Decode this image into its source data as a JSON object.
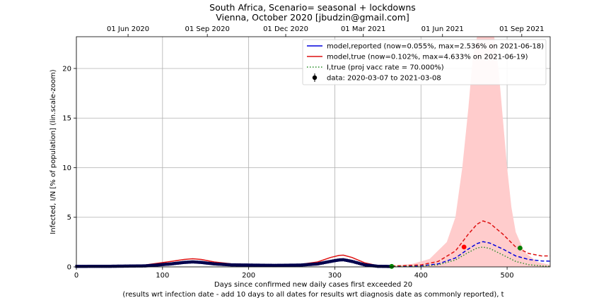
{
  "chart_data": {
    "type": "line",
    "title": "South Africa, Scenario= seasonal + lockdowns",
    "subtitle": "Vienna, October 2020 [jbudzin@gmail.com]",
    "xlabel": "Days since confirmed new daily cases first exceeded 20",
    "xlabel_note": "(results wrt infection date - add 10 days to all dates for results wrt diagnosis date as commonly reported), t",
    "ylabel": "Infected, I/N [% of population] (lin.scale-zoom)",
    "xlim": [
      0,
      550
    ],
    "ylim": [
      0,
      23.2
    ],
    "x_ticks": [
      0,
      100,
      200,
      300,
      400,
      500
    ],
    "y_ticks": [
      0,
      5,
      10,
      15,
      20
    ],
    "top_axis_ticks": [
      {
        "day": 60,
        "label": "01 Jun 2020"
      },
      {
        "day": 152,
        "label": "01 Sep 2020"
      },
      {
        "day": 243,
        "label": "01 Dec 2020"
      },
      {
        "day": 333,
        "label": "01 Mar 2021"
      },
      {
        "day": 425,
        "label": "01 Jun 2021"
      },
      {
        "day": 517,
        "label": "01 Sep 2021"
      }
    ],
    "grid": true,
    "legend_position": "top-right",
    "series": [
      {
        "name": "model,reported (now=0.055%, max=2.536% on 2021-06-18)",
        "color": "#0000dd",
        "x": [
          0,
          40,
          80,
          110,
          125,
          135,
          145,
          160,
          180,
          200,
          230,
          260,
          280,
          295,
          305,
          310,
          320,
          335,
          350,
          366,
          380,
          400,
          420,
          440,
          455,
          465,
          472,
          480,
          495,
          510,
          525,
          540,
          550
        ],
        "y": [
          0.05,
          0.06,
          0.1,
          0.3,
          0.45,
          0.5,
          0.45,
          0.3,
          0.2,
          0.18,
          0.15,
          0.18,
          0.3,
          0.55,
          0.7,
          0.72,
          0.55,
          0.2,
          0.06,
          0.04,
          0.05,
          0.1,
          0.3,
          0.9,
          1.8,
          2.35,
          2.54,
          2.4,
          1.8,
          1.1,
          0.75,
          0.6,
          0.58
        ]
      },
      {
        "name": "model,true (now=0.102%, max=4.633% on 2021-06-19)",
        "color": "#dd1111",
        "x": [
          0,
          40,
          80,
          110,
          125,
          135,
          145,
          160,
          180,
          200,
          230,
          260,
          280,
          295,
          305,
          310,
          320,
          335,
          350,
          366,
          380,
          400,
          420,
          440,
          455,
          465,
          472,
          480,
          495,
          510,
          525,
          540,
          550
        ],
        "y": [
          0.08,
          0.1,
          0.2,
          0.55,
          0.75,
          0.82,
          0.75,
          0.5,
          0.3,
          0.25,
          0.2,
          0.25,
          0.5,
          0.95,
          1.15,
          1.18,
          0.95,
          0.4,
          0.12,
          0.1,
          0.12,
          0.2,
          0.55,
          1.6,
          3.3,
          4.3,
          4.63,
          4.4,
          3.3,
          2.0,
          1.35,
          1.1,
          1.1
        ]
      },
      {
        "name": "I,true (proj vacc rate = 70.000%)",
        "color": "#228b22",
        "x": [
          366,
          380,
          400,
          420,
          440,
          455,
          465,
          472,
          480,
          495,
          510,
          525,
          540,
          550
        ],
        "y": [
          0.04,
          0.05,
          0.08,
          0.2,
          0.7,
          1.45,
          1.9,
          2.0,
          1.85,
          1.2,
          0.55,
          0.22,
          0.1,
          0.06
        ]
      }
    ],
    "confidence_band": {
      "color": "#ffcccc",
      "x": [
        366,
        390,
        410,
        430,
        440,
        448,
        455,
        460,
        465,
        470,
        478,
        485,
        490,
        495,
        500,
        505,
        510,
        520,
        535,
        550
      ],
      "lower": [
        0,
        0,
        0,
        0,
        0,
        0,
        0,
        0,
        0,
        0,
        0,
        0,
        0,
        0,
        0,
        0,
        0,
        0,
        0,
        0
      ],
      "upper": [
        0.1,
        0.3,
        0.8,
        2.5,
        5,
        10,
        16,
        21,
        23.2,
        23.2,
        23.2,
        23.2,
        20,
        15,
        10,
        6,
        3.5,
        1.5,
        0.5,
        0.2
      ]
    },
    "data_points": {
      "name": "data: 2020-03-07 to 2021-03-08",
      "color": "#00004d",
      "x_start": 0,
      "x_end": 366,
      "x": [
        0,
        40,
        80,
        110,
        125,
        135,
        145,
        160,
        180,
        200,
        230,
        260,
        280,
        295,
        305,
        310,
        320,
        335,
        350,
        366
      ],
      "y": [
        0.05,
        0.06,
        0.1,
        0.3,
        0.45,
        0.5,
        0.45,
        0.3,
        0.2,
        0.18,
        0.15,
        0.18,
        0.3,
        0.55,
        0.7,
        0.72,
        0.55,
        0.2,
        0.06,
        0.04
      ]
    },
    "markers": [
      {
        "x": 450,
        "y": 2.0,
        "color": "#ff0000"
      },
      {
        "x": 366,
        "y": 0.05,
        "color": "#008000"
      },
      {
        "x": 515,
        "y": 1.9,
        "color": "#008000"
      }
    ]
  }
}
